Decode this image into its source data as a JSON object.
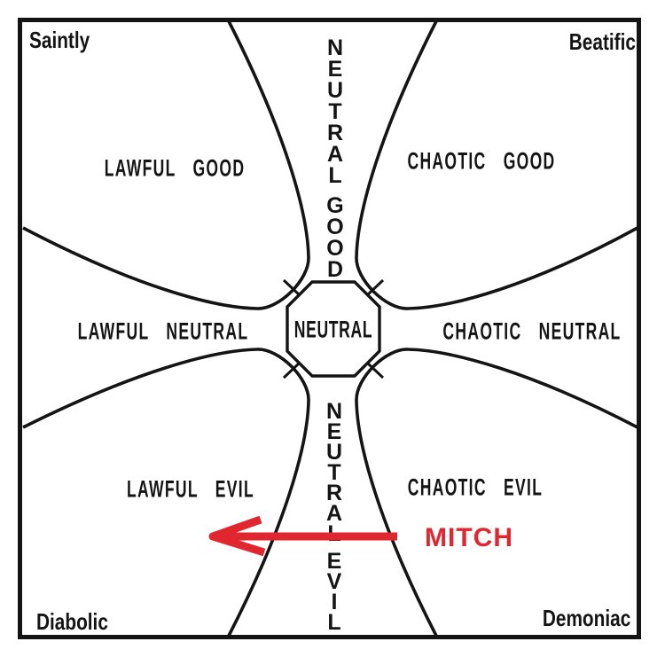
{
  "corners": {
    "top_left": "Saintly",
    "top_right": "Beatific",
    "bottom_left": "Diabolic",
    "bottom_right": "Demoniac"
  },
  "quadrants": {
    "lawful_good": "LAWFUL GOOD",
    "chaotic_good": "CHAOTIC GOOD",
    "lawful_evil": "LAWFUL EVIL",
    "chaotic_evil": "CHAOTIC EVIL"
  },
  "axes": {
    "lawful_neutral": "LAWFUL NEUTRAL",
    "chaotic_neutral": "CHAOTIC NEUTRAL",
    "neutral_good": "NEUTRAL GOOD",
    "neutral_evil": "NEUTRAL EVIL"
  },
  "center": {
    "label": "NEUTRAL"
  },
  "annotation": {
    "label": "MITCH",
    "color": "#e02730",
    "direction": "left"
  },
  "colors": {
    "ink": "#141414",
    "background": "#ffffff"
  }
}
